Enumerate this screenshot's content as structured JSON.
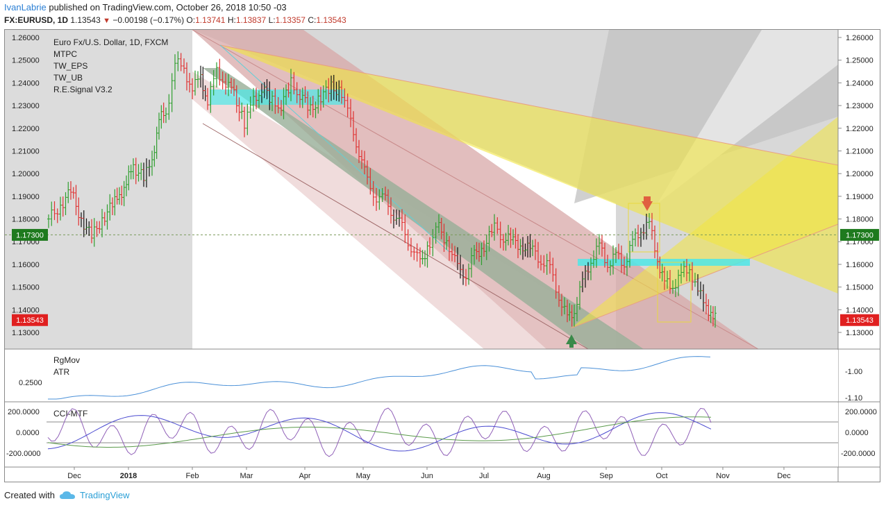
{
  "header": {
    "author": "IvanLabrie",
    "published_text": "published on TradingView.com, October 26, 2018 10:50 -03",
    "symbol": "FX:EURUSD, 1D",
    "last": "1.13543",
    "change": "−0.00198 (−0.17%)",
    "o_label": "O:",
    "o_value": "1.13741",
    "h_label": "H:",
    "h_value": "1.13837",
    "l_label": "L:",
    "l_value": "1.13357",
    "c_label": "C:",
    "c_value": "1.13543"
  },
  "legend": {
    "title": "Euro Fx/U.S. Dollar, 1D, FXCM",
    "indicators": [
      "MTPC",
      "TW_EPS",
      "TW_UB",
      "R.E.Signal V3.2"
    ]
  },
  "sub1": {
    "labels": [
      "RgMov",
      "ATR"
    ],
    "left_value": "0.2500",
    "right_ticks": [
      "-1.00",
      "-1.10"
    ]
  },
  "sub2": {
    "label": "CCI-MTF",
    "ticks": [
      "200.0000",
      "0.0000",
      "-200.0000"
    ]
  },
  "price_axis": {
    "ticks": [
      "1.26000",
      "1.25000",
      "1.24000",
      "1.23000",
      "1.22000",
      "1.21000",
      "1.20000",
      "1.19000",
      "1.18000",
      "1.17000",
      "1.16000",
      "1.15000",
      "1.14000",
      "1.13000"
    ],
    "marker_line": "1.17300",
    "marker_last": "1.13543",
    "colors": {
      "line_marker": "#1e7a1e",
      "last_marker": "#e02020"
    }
  },
  "time_axis": [
    "Dec",
    "2018",
    "Feb",
    "Mar",
    "Apr",
    "May",
    "Jun",
    "Jul",
    "Aug",
    "Sep",
    "Oct",
    "Nov",
    "Dec"
  ],
  "footer": {
    "created_with": "Created with",
    "brand": "TradingView"
  },
  "colors": {
    "up": "#2e9e2e",
    "down": "#e03030",
    "highlight": "#4de8e8",
    "fan": "#f2e640"
  }
}
